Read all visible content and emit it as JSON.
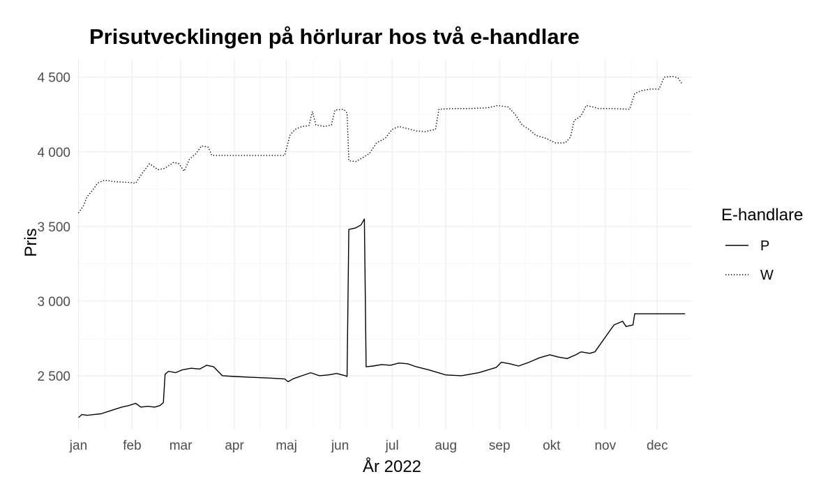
{
  "chart_data": {
    "type": "line",
    "title": "Prisutvecklingen på hörlurar hos två e-handlare",
    "xlabel": "År 2022",
    "ylabel": "Pris",
    "x_ticks": [
      "jan",
      "feb",
      "mar",
      "apr",
      "maj",
      "jun",
      "jul",
      "aug",
      "sep",
      "okt",
      "nov",
      "dec"
    ],
    "y_ticks": [
      2500,
      3000,
      3500,
      4000,
      4500
    ],
    "y_tick_labels": [
      "2 500",
      "3 000",
      "3 500",
      "4 000",
      "4 500"
    ],
    "ylim": [
      2140,
      4620
    ],
    "xlim": [
      "2021-12-31",
      "2022-12-21"
    ],
    "grid": true,
    "legend_position": "right",
    "legend_title": "E-handlare",
    "series": [
      {
        "name": "P",
        "line_style": "solid",
        "color": "#000000",
        "points": [
          [
            "2022-01-01",
            2220
          ],
          [
            "2022-01-03",
            2240
          ],
          [
            "2022-01-06",
            2235
          ],
          [
            "2022-01-10",
            2240
          ],
          [
            "2022-01-14",
            2245
          ],
          [
            "2022-01-18",
            2260
          ],
          [
            "2022-01-22",
            2275
          ],
          [
            "2022-01-26",
            2290
          ],
          [
            "2022-01-30",
            2300
          ],
          [
            "2022-02-03",
            2315
          ],
          [
            "2022-02-06",
            2290
          ],
          [
            "2022-02-10",
            2295
          ],
          [
            "2022-02-14",
            2290
          ],
          [
            "2022-02-17",
            2300
          ],
          [
            "2022-02-19",
            2320
          ],
          [
            "2022-02-20",
            2510
          ],
          [
            "2022-02-22",
            2530
          ],
          [
            "2022-02-26",
            2520
          ],
          [
            "2022-03-02",
            2540
          ],
          [
            "2022-03-07",
            2550
          ],
          [
            "2022-03-12",
            2545
          ],
          [
            "2022-03-16",
            2570
          ],
          [
            "2022-03-20",
            2560
          ],
          [
            "2022-03-25",
            2500
          ],
          [
            "2022-04-01",
            2495
          ],
          [
            "2022-04-10",
            2490
          ],
          [
            "2022-04-20",
            2485
          ],
          [
            "2022-04-30",
            2478
          ],
          [
            "2022-05-02",
            2460
          ],
          [
            "2022-05-05",
            2480
          ],
          [
            "2022-05-10",
            2500
          ],
          [
            "2022-05-15",
            2520
          ],
          [
            "2022-05-20",
            2500
          ],
          [
            "2022-05-25",
            2505
          ],
          [
            "2022-05-30",
            2515
          ],
          [
            "2022-06-04",
            2500
          ],
          [
            "2022-06-05",
            2495
          ],
          [
            "2022-06-06",
            3480
          ],
          [
            "2022-06-10",
            3490
          ],
          [
            "2022-06-13",
            3510
          ],
          [
            "2022-06-15",
            3550
          ],
          [
            "2022-06-16",
            2560
          ],
          [
            "2022-06-20",
            2565
          ],
          [
            "2022-06-25",
            2575
          ],
          [
            "2022-06-30",
            2570
          ],
          [
            "2022-07-05",
            2585
          ],
          [
            "2022-07-10",
            2580
          ],
          [
            "2022-07-15",
            2560
          ],
          [
            "2022-07-22",
            2540
          ],
          [
            "2022-08-01",
            2505
          ],
          [
            "2022-08-10",
            2500
          ],
          [
            "2022-08-20",
            2520
          ],
          [
            "2022-08-30",
            2555
          ],
          [
            "2022-09-02",
            2590
          ],
          [
            "2022-09-07",
            2580
          ],
          [
            "2022-09-12",
            2565
          ],
          [
            "2022-09-18",
            2590
          ],
          [
            "2022-09-24",
            2620
          ],
          [
            "2022-09-30",
            2640
          ],
          [
            "2022-10-05",
            2625
          ],
          [
            "2022-10-10",
            2615
          ],
          [
            "2022-10-15",
            2640
          ],
          [
            "2022-10-18",
            2660
          ],
          [
            "2022-10-23",
            2650
          ],
          [
            "2022-10-26",
            2660
          ],
          [
            "2022-11-06",
            2840
          ],
          [
            "2022-11-11",
            2865
          ],
          [
            "2022-11-13",
            2830
          ],
          [
            "2022-11-17",
            2840
          ],
          [
            "2022-11-18",
            2915
          ],
          [
            "2022-12-17",
            2915
          ]
        ]
      },
      {
        "name": "W",
        "line_style": "dotted",
        "color": "#000000",
        "points": [
          [
            "2022-01-01",
            3590
          ],
          [
            "2022-01-04",
            3640
          ],
          [
            "2022-01-06",
            3700
          ],
          [
            "2022-01-09",
            3740
          ],
          [
            "2022-01-12",
            3790
          ],
          [
            "2022-01-16",
            3810
          ],
          [
            "2022-01-22",
            3800
          ],
          [
            "2022-01-30",
            3795
          ],
          [
            "2022-02-03",
            3790
          ],
          [
            "2022-02-07",
            3860
          ],
          [
            "2022-02-11",
            3920
          ],
          [
            "2022-02-16",
            3880
          ],
          [
            "2022-02-20",
            3890
          ],
          [
            "2022-02-25",
            3930
          ],
          [
            "2022-02-28",
            3920
          ],
          [
            "2022-03-03",
            3870
          ],
          [
            "2022-03-06",
            3950
          ],
          [
            "2022-03-10",
            3990
          ],
          [
            "2022-03-13",
            4040
          ],
          [
            "2022-03-17",
            4030
          ],
          [
            "2022-03-19",
            3975
          ],
          [
            "2022-04-01",
            3975
          ],
          [
            "2022-04-15",
            3975
          ],
          [
            "2022-04-30",
            3975
          ],
          [
            "2022-05-03",
            4110
          ],
          [
            "2022-05-06",
            4150
          ],
          [
            "2022-05-10",
            4170
          ],
          [
            "2022-05-14",
            4175
          ],
          [
            "2022-05-16",
            4270
          ],
          [
            "2022-05-18",
            4180
          ],
          [
            "2022-05-23",
            4170
          ],
          [
            "2022-05-27",
            4180
          ],
          [
            "2022-05-29",
            4280
          ],
          [
            "2022-06-03",
            4285
          ],
          [
            "2022-06-05",
            4260
          ],
          [
            "2022-06-06",
            3940
          ],
          [
            "2022-06-10",
            3935
          ],
          [
            "2022-06-14",
            3960
          ],
          [
            "2022-06-18",
            3990
          ],
          [
            "2022-06-22",
            4060
          ],
          [
            "2022-06-27",
            4090
          ],
          [
            "2022-07-01",
            4150
          ],
          [
            "2022-07-05",
            4170
          ],
          [
            "2022-07-10",
            4155
          ],
          [
            "2022-07-15",
            4140
          ],
          [
            "2022-07-20",
            4135
          ],
          [
            "2022-07-26",
            4150
          ],
          [
            "2022-07-28",
            4285
          ],
          [
            "2022-08-05",
            4290
          ],
          [
            "2022-08-15",
            4290
          ],
          [
            "2022-08-25",
            4295
          ],
          [
            "2022-08-31",
            4310
          ],
          [
            "2022-09-06",
            4300
          ],
          [
            "2022-09-10",
            4250
          ],
          [
            "2022-09-14",
            4180
          ],
          [
            "2022-09-18",
            4150
          ],
          [
            "2022-09-22",
            4110
          ],
          [
            "2022-09-28",
            4090
          ],
          [
            "2022-10-03",
            4060
          ],
          [
            "2022-10-09",
            4060
          ],
          [
            "2022-10-12",
            4100
          ],
          [
            "2022-10-14",
            4210
          ],
          [
            "2022-10-18",
            4240
          ],
          [
            "2022-10-21",
            4310
          ],
          [
            "2022-10-25",
            4300
          ],
          [
            "2022-10-28",
            4290
          ],
          [
            "2022-11-05",
            4290
          ],
          [
            "2022-11-15",
            4285
          ],
          [
            "2022-11-18",
            4390
          ],
          [
            "2022-11-22",
            4410
          ],
          [
            "2022-11-27",
            4420
          ],
          [
            "2022-12-02",
            4420
          ],
          [
            "2022-12-05",
            4500
          ],
          [
            "2022-12-10",
            4505
          ],
          [
            "2022-12-13",
            4495
          ],
          [
            "2022-12-15",
            4460
          ]
        ]
      }
    ]
  }
}
